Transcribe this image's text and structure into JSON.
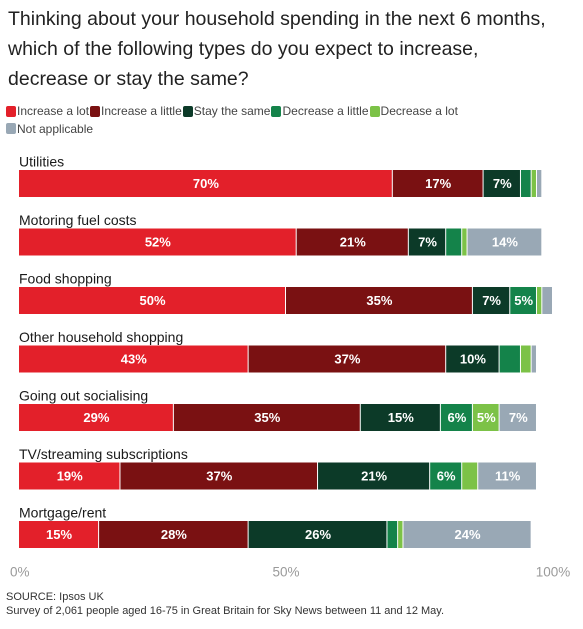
{
  "title_line1": "Thinking about your household spending in the next 6 months,",
  "title_line2": "which of the following types do you expect to increase,",
  "title_line3": "decrease or stay the same?",
  "source": "SOURCE: Ipsos UK",
  "survey_note": "Survey of 2,061 people aged 16-75 in Great Britain for Sky News between 11 and 12 May.",
  "colors": {
    "increase_a_lot": "#e3202a",
    "increase_a_little": "#7a1112",
    "stay_the_same": "#0c3a28",
    "decrease_a_little": "#14834a",
    "decrease_a_lot": "#7cc247",
    "not_applicable": "#99a8b5"
  },
  "chart_data": {
    "type": "bar",
    "orientation": "horizontal",
    "stacked": true,
    "categories": [
      "Utilities",
      "Motoring fuel costs",
      "Food shopping",
      "Other household shopping",
      "Going out socialising",
      "TV/streaming subscriptions",
      "Mortgage/rent"
    ],
    "series": [
      {
        "name": "Increase a lot",
        "color": "#e3202a",
        "values": [
          70,
          52,
          50,
          43,
          29,
          19,
          15
        ]
      },
      {
        "name": "Increase a little",
        "color": "#7a1112",
        "values": [
          17,
          21,
          35,
          37,
          35,
          37,
          28
        ]
      },
      {
        "name": "Stay the same",
        "color": "#0c3a28",
        "values": [
          7,
          7,
          7,
          10,
          15,
          21,
          26
        ]
      },
      {
        "name": "Decrease a little",
        "color": "#14834a",
        "values": [
          2,
          3,
          5,
          4,
          6,
          6,
          2
        ]
      },
      {
        "name": "Decrease a lot",
        "color": "#7cc247",
        "values": [
          1,
          1,
          1,
          2,
          5,
          3,
          1
        ]
      },
      {
        "name": "Not applicable",
        "color": "#99a8b5",
        "values": [
          1,
          14,
          2,
          1,
          7,
          11,
          24
        ]
      }
    ],
    "xlim": [
      0,
      100
    ],
    "xticks": [
      0,
      50,
      100
    ],
    "xtick_labels": [
      "0%",
      "50%",
      "100%"
    ],
    "label_threshold": 5,
    "legend_position": "top"
  }
}
